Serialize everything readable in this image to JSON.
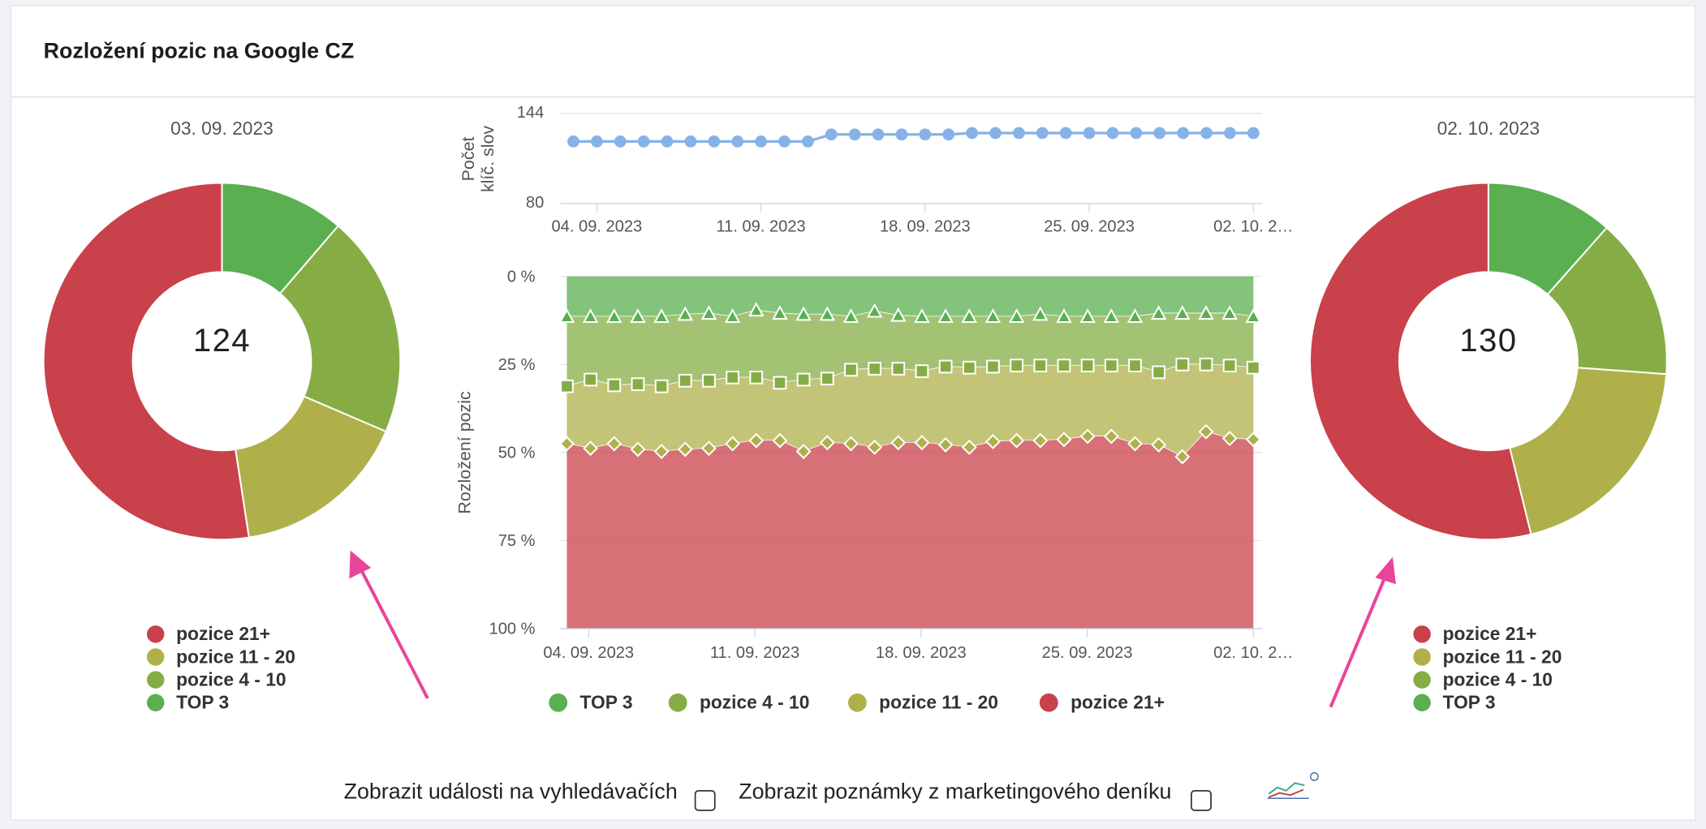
{
  "title": "Rozložení pozic na Google CZ",
  "chart_data": [
    {
      "type": "pie",
      "subtitle": "03. 09. 2023",
      "total": 124,
      "categories": [
        "TOP 3",
        "pozice 4 - 10",
        "pozice 11 - 20",
        "pozice 21+"
      ],
      "values": [
        14,
        25,
        20,
        65
      ],
      "colors": [
        "#5aaf50",
        "#86ad45",
        "#afb04a",
        "#c9414a"
      ]
    },
    {
      "type": "line",
      "y_label": [
        "Počet",
        "klíč. slov"
      ],
      "categories": [
        null,
        "04. 09. 2023",
        null,
        null,
        null,
        null,
        null,
        null,
        "11. 09. 2023",
        null,
        null,
        null,
        null,
        null,
        null,
        "18. 09. 2023",
        null,
        null,
        null,
        null,
        null,
        null,
        "25. 09. 2023",
        null,
        null,
        null,
        null,
        null,
        null,
        "02. 10. 2…"
      ],
      "series": [
        {
          "name": "Počet klíč. slov",
          "color": "#87b2e8",
          "values": [
            124,
            124,
            124,
            124,
            124,
            124,
            124,
            124,
            124,
            124,
            124,
            129,
            129,
            129,
            129,
            129,
            129,
            130,
            130,
            130,
            130,
            130,
            130,
            130,
            130,
            130,
            130,
            130,
            130,
            130
          ]
        }
      ],
      "ylim": [
        80,
        144
      ],
      "yticks": [
        80,
        144
      ]
    },
    {
      "type": "area",
      "y_label": "Rozložení pozic",
      "stacked": true,
      "reversed": true,
      "categories": [
        null,
        "04. 09. 2023",
        null,
        null,
        null,
        null,
        null,
        null,
        "11. 09. 2023",
        null,
        null,
        null,
        null,
        null,
        null,
        "18. 09. 2023",
        null,
        null,
        null,
        null,
        null,
        null,
        "25. 09. 2023",
        null,
        null,
        null,
        null,
        null,
        null,
        "02. 10. 2…"
      ],
      "series": [
        {
          "name": "TOP 3",
          "color": "#5aaf50",
          "marker": "triangle",
          "values": [
            11.4,
            11.4,
            11.4,
            11.4,
            11.4,
            10.8,
            10.5,
            11.4,
            9.6,
            10.5,
            10.8,
            10.8,
            11.4,
            9.9,
            11.1,
            11.4,
            11.4,
            11.4,
            11.4,
            11.4,
            10.8,
            11.4,
            11.4,
            11.4,
            11.4,
            10.5,
            10.5,
            10.5,
            10.5,
            11.4
          ]
        },
        {
          "name": "pozice 4 - 10",
          "color": "#86ad45",
          "marker": "square",
          "values": [
            19.8,
            17.9,
            19.5,
            19.2,
            19.8,
            18.8,
            19.1,
            17.3,
            19.1,
            19.7,
            18.5,
            18.2,
            15.1,
            16.3,
            15.1,
            15.5,
            14.2,
            14.5,
            14.2,
            13.9,
            14.5,
            13.9,
            13.9,
            13.9,
            13.9,
            16.7,
            14.5,
            14.5,
            14.8,
            14.5
          ]
        },
        {
          "name": "pozice 11 - 20",
          "color": "#afb04a",
          "marker": "diamond",
          "values": [
            16.3,
            19.5,
            16.6,
            18.5,
            18.5,
            19.5,
            19.2,
            18.8,
            17.9,
            16.4,
            20.4,
            18.2,
            21.0,
            22.3,
            21.0,
            20.3,
            22.2,
            22.6,
            21.3,
            21.3,
            21.3,
            21.0,
            20.1,
            20.1,
            22.2,
            20.6,
            26.2,
            19.1,
            20.7,
            20.4
          ]
        },
        {
          "name": "pozice 21+",
          "color": "#c9414a",
          "marker": "none",
          "values": [
            52.5,
            51.2,
            52.5,
            50.9,
            50.3,
            50.9,
            51.2,
            52.5,
            53.4,
            53.4,
            50.3,
            52.8,
            52.5,
            51.5,
            52.8,
            52.8,
            52.2,
            51.5,
            53.1,
            53.4,
            53.4,
            53.7,
            54.6,
            54.6,
            52.5,
            52.2,
            48.8,
            55.9,
            54.0,
            53.7
          ]
        }
      ],
      "ylim": [
        0,
        100
      ],
      "yticks": [
        {
          "value": 0,
          "label": "0 %"
        },
        {
          "value": 25,
          "label": "25 %"
        },
        {
          "value": 50,
          "label": "50 %"
        },
        {
          "value": 75,
          "label": "75 %"
        },
        {
          "value": 100,
          "label": "100 %"
        }
      ],
      "grid": true
    },
    {
      "type": "pie",
      "subtitle": "02. 10. 2023",
      "total": 130,
      "categories": [
        "TOP 3",
        "pozice 4 - 10",
        "pozice 11 - 20",
        "pozice 21+"
      ],
      "values": [
        15,
        19,
        26,
        70
      ],
      "colors": [
        "#5aaf50",
        "#86ad45",
        "#afb04a",
        "#c9414a"
      ]
    }
  ],
  "controls": [
    "Zobrazit události na vyhledávačích",
    "Zobrazit poznámky z marketingového deníku"
  ]
}
